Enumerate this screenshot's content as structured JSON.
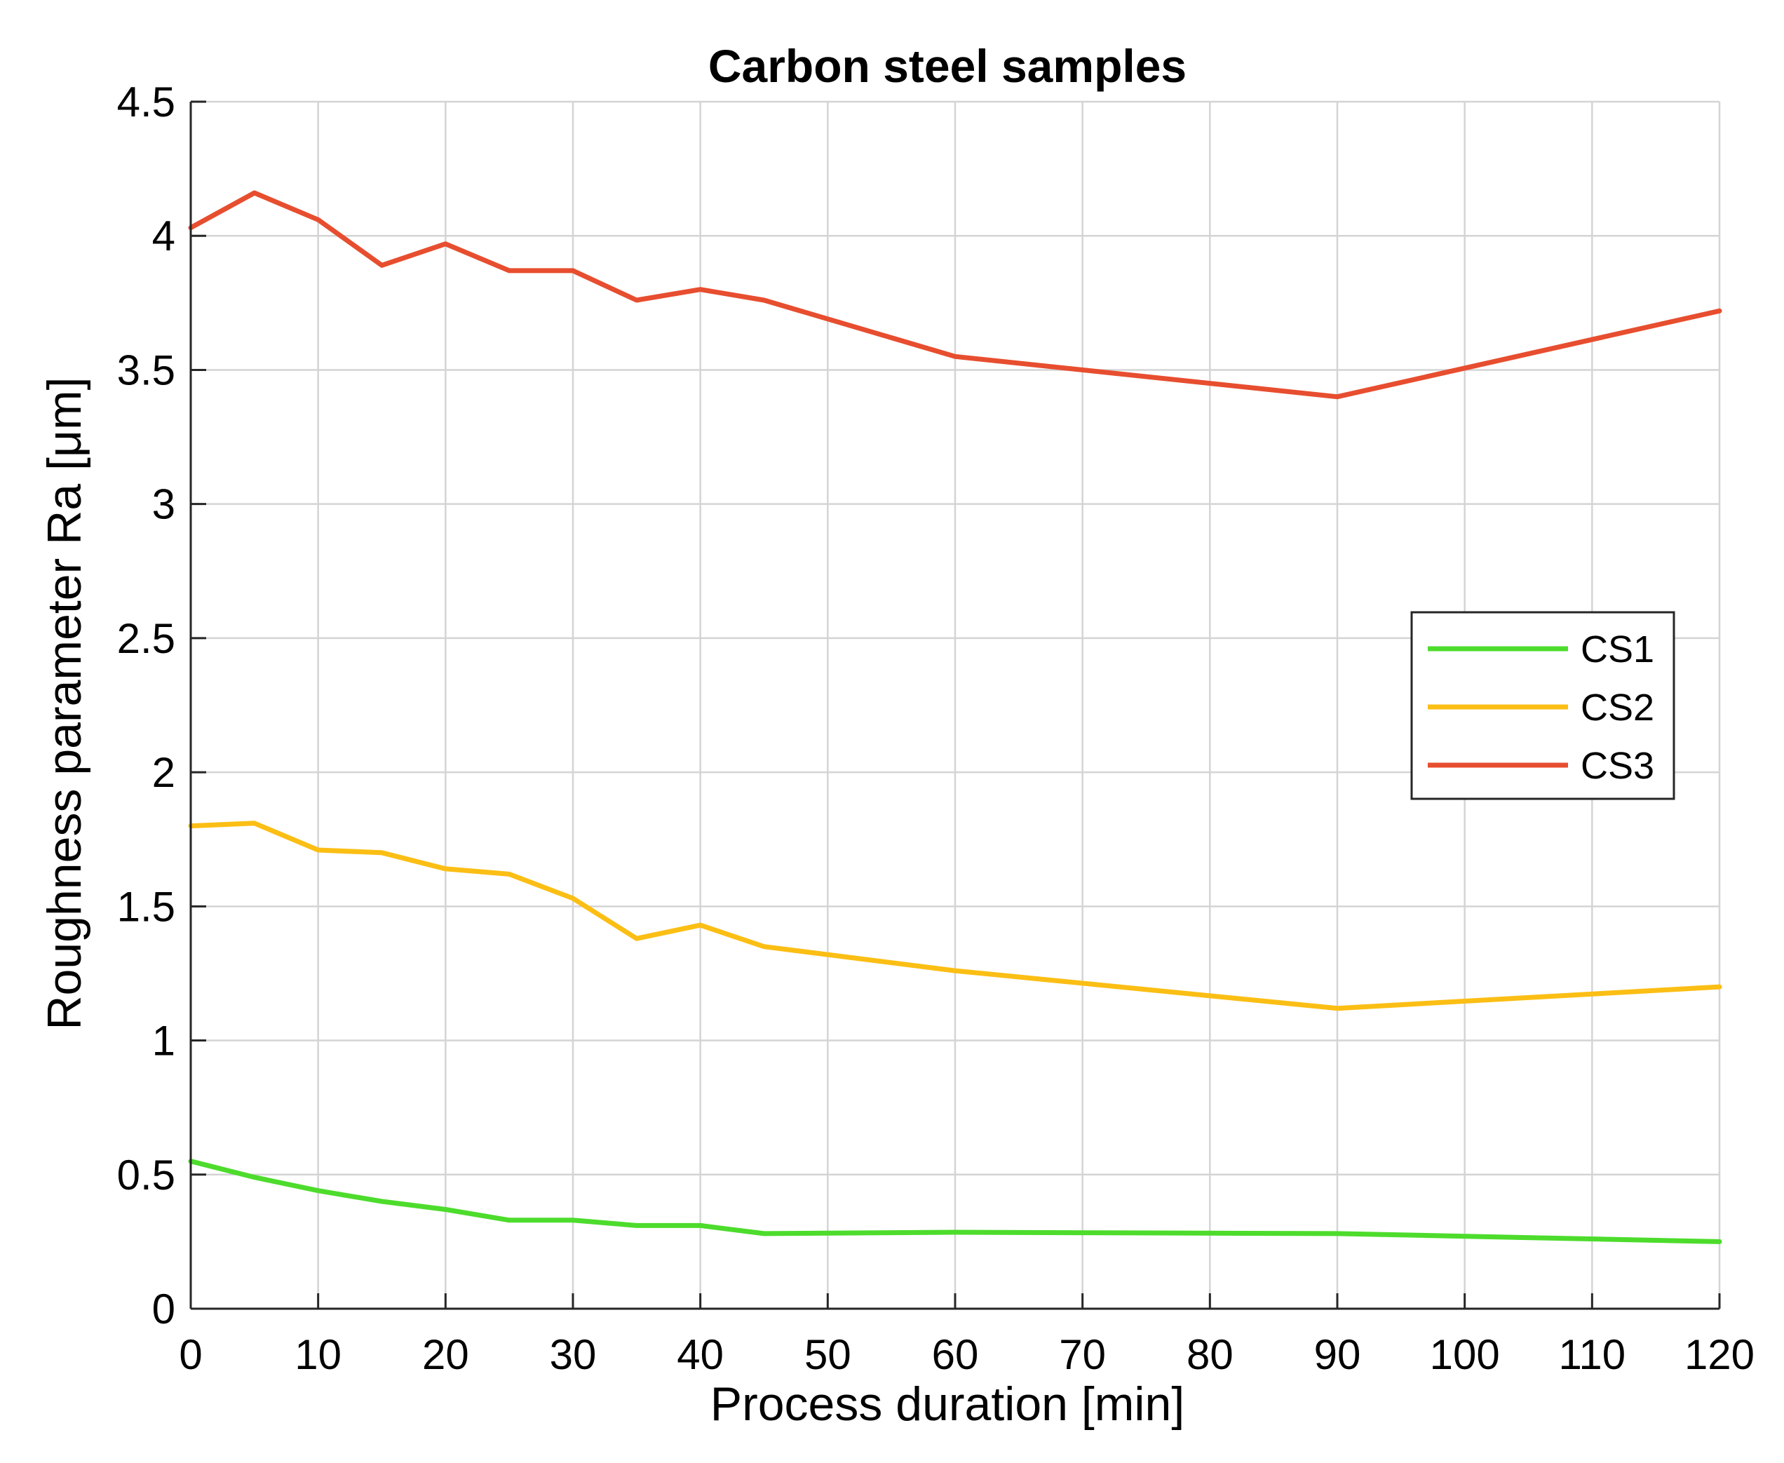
{
  "chart_data": {
    "type": "line",
    "title": "Carbon steel samples",
    "xlabel": "Process duration [min]",
    "ylabel": "Roughness parameter Ra [μm]",
    "xlim": [
      0,
      120
    ],
    "ylim": [
      0,
      4.5
    ],
    "xticks": [
      0,
      10,
      20,
      30,
      40,
      50,
      60,
      70,
      80,
      90,
      100,
      110,
      120
    ],
    "yticks": [
      0,
      0.5,
      1,
      1.5,
      2,
      2.5,
      3,
      3.5,
      4,
      4.5
    ],
    "xtick_labels": [
      "0",
      "10",
      "20",
      "30",
      "40",
      "50",
      "60",
      "70",
      "80",
      "90",
      "100",
      "110",
      "120"
    ],
    "ytick_labels": [
      "0",
      "0.5",
      "1",
      "1.5",
      "2",
      "2.5",
      "3",
      "3.5",
      "4",
      "4.5"
    ],
    "grid": true,
    "legend_position": "right",
    "x": [
      0,
      5,
      10,
      15,
      20,
      25,
      30,
      35,
      40,
      45,
      60,
      90,
      120
    ],
    "series": [
      {
        "name": "CS1",
        "color": "#4ddc2c",
        "values": [
          0.55,
          0.49,
          0.44,
          0.4,
          0.37,
          0.33,
          0.33,
          0.31,
          0.31,
          0.28,
          0.285,
          0.28,
          0.25
        ]
      },
      {
        "name": "CS2",
        "color": "#fbbe14",
        "values": [
          1.8,
          1.81,
          1.71,
          1.7,
          1.64,
          1.62,
          1.53,
          1.38,
          1.43,
          1.35,
          1.26,
          1.12,
          1.2
        ]
      },
      {
        "name": "CS3",
        "color": "#e74e2f",
        "values": [
          4.03,
          4.16,
          4.06,
          3.89,
          3.97,
          3.87,
          3.87,
          3.76,
          3.8,
          3.76,
          3.55,
          3.4,
          3.72
        ]
      }
    ]
  }
}
